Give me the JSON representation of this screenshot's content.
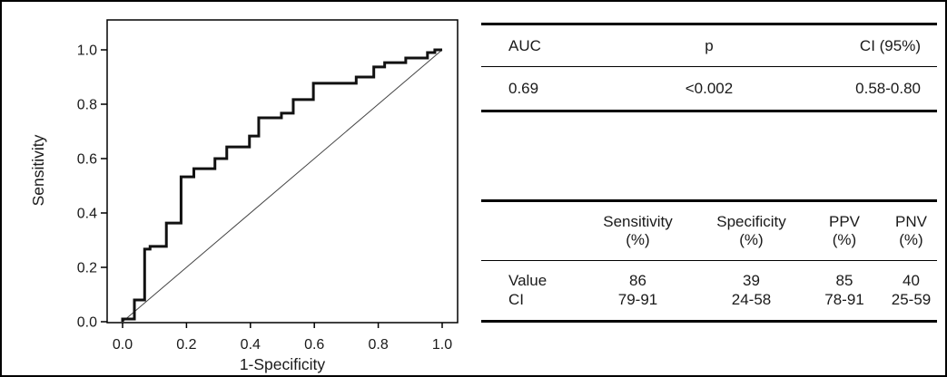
{
  "figure_title": "ROC curve figure with AUC and diagnostic performance tables",
  "chart_data": {
    "type": "line",
    "subtype": "roc_step_curve",
    "title": "",
    "xlabel": "1-Specificity",
    "ylabel": "Sensitivity",
    "xlim": [
      0.0,
      1.0
    ],
    "ylim": [
      0.0,
      1.0
    ],
    "x_ticks": [
      "0.0",
      "0.2",
      "0.4",
      "0.6",
      "0.8",
      "1.0"
    ],
    "y_ticks": [
      "0.0",
      "0.2",
      "0.4",
      "0.6",
      "0.8",
      "1.0"
    ],
    "grid": false,
    "legend": "none",
    "series": [
      {
        "name": "ROC curve",
        "style": "step",
        "points": [
          [
            0.0,
            0.0
          ],
          [
            0.0,
            0.01
          ],
          [
            0.037,
            0.01
          ],
          [
            0.037,
            0.08
          ],
          [
            0.069,
            0.08
          ],
          [
            0.069,
            0.267
          ],
          [
            0.086,
            0.267
          ],
          [
            0.086,
            0.277
          ],
          [
            0.137,
            0.277
          ],
          [
            0.137,
            0.363
          ],
          [
            0.183,
            0.363
          ],
          [
            0.183,
            0.533
          ],
          [
            0.223,
            0.533
          ],
          [
            0.223,
            0.563
          ],
          [
            0.289,
            0.563
          ],
          [
            0.289,
            0.6
          ],
          [
            0.326,
            0.6
          ],
          [
            0.326,
            0.643
          ],
          [
            0.397,
            0.643
          ],
          [
            0.397,
            0.683
          ],
          [
            0.426,
            0.683
          ],
          [
            0.426,
            0.75
          ],
          [
            0.497,
            0.75
          ],
          [
            0.497,
            0.767
          ],
          [
            0.534,
            0.767
          ],
          [
            0.534,
            0.817
          ],
          [
            0.597,
            0.817
          ],
          [
            0.597,
            0.877
          ],
          [
            0.731,
            0.877
          ],
          [
            0.731,
            0.9
          ],
          [
            0.786,
            0.9
          ],
          [
            0.786,
            0.937
          ],
          [
            0.82,
            0.937
          ],
          [
            0.82,
            0.953
          ],
          [
            0.886,
            0.953
          ],
          [
            0.886,
            0.97
          ],
          [
            0.954,
            0.97
          ],
          [
            0.954,
            0.99
          ],
          [
            0.977,
            0.99
          ],
          [
            0.977,
            1.0
          ],
          [
            1.0,
            1.0
          ]
        ]
      },
      {
        "name": "Reference diagonal",
        "style": "straight",
        "points": [
          [
            0.0,
            0.0
          ],
          [
            1.0,
            1.0
          ]
        ]
      }
    ]
  },
  "colors": {
    "curve": "#111111",
    "diagonal": "#444444",
    "axis": "#000000",
    "text": "#1a1a1a",
    "background": "#ffffff"
  },
  "auc_table": {
    "headers": [
      "AUC",
      "p",
      "CI (95%)"
    ],
    "row": [
      "0.69",
      "<0.002",
      "0.58-0.80"
    ]
  },
  "metrics_table": {
    "corner_label": "",
    "col_headers": [
      {
        "line1": "Sensitivity",
        "line2": "(%)"
      },
      {
        "line1": "Specificity",
        "line2": "(%)"
      },
      {
        "line1": "PPV",
        "line2": "(%)"
      },
      {
        "line1": "PNV",
        "line2": "(%)"
      }
    ],
    "rows": [
      {
        "label": "Value",
        "values": [
          "86",
          "39",
          "85",
          "40"
        ]
      },
      {
        "label": "CI",
        "values": [
          "79-91",
          "24-58",
          "78-91",
          "25-59"
        ]
      }
    ]
  }
}
